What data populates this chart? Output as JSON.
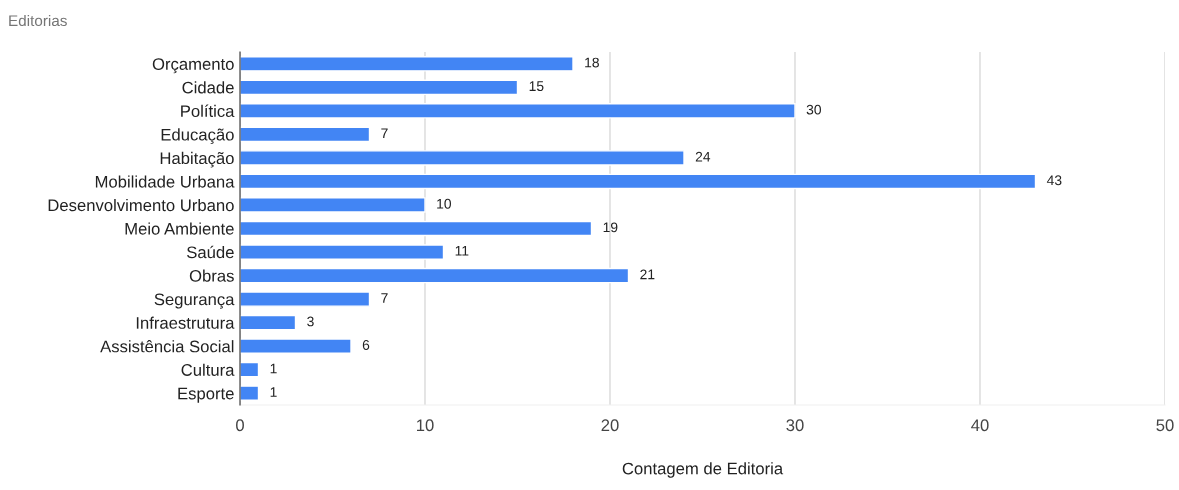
{
  "chart_data": {
    "type": "bar",
    "orientation": "horizontal",
    "title": "Editorias",
    "xlabel": "Contagem de Editoria",
    "categories": [
      "Orçamento",
      "Cidade",
      "Política",
      "Educação",
      "Habitação",
      "Mobilidade Urbana",
      "Desenvolvimento Urbano",
      "Meio Ambiente",
      "Saúde",
      "Obras",
      "Segurança",
      "Infraestrutura",
      "Assistência Social",
      "Cultura",
      "Esporte"
    ],
    "values": [
      18,
      15,
      30,
      7,
      24,
      43,
      10,
      19,
      11,
      21,
      7,
      3,
      6,
      1,
      1
    ],
    "color": "#4285f4",
    "data_labels": true,
    "xlim": [
      0,
      50
    ],
    "xticks": [
      0,
      10,
      20,
      30,
      40,
      50
    ],
    "grid": "x",
    "legend": false
  }
}
